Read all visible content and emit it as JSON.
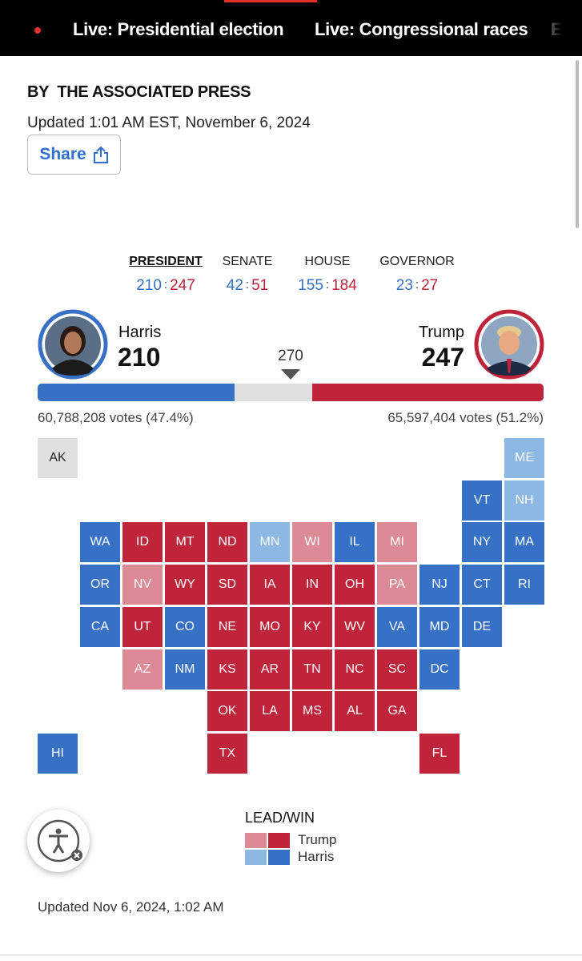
{
  "nav": {
    "items": [
      "Live: Presidential election",
      "Live: Congressional races",
      "El"
    ]
  },
  "header": {
    "byline": "BY  THE ASSOCIATED PRESS",
    "updated": "Updated 1:01 AM EST, November 6, 2024",
    "share": "Share"
  },
  "races": {
    "separator": ":",
    "tabs": [
      {
        "label": "PRESIDENT",
        "dem": 210,
        "rep": 247
      },
      {
        "label": "SENATE",
        "dem": 42,
        "rep": 51
      },
      {
        "label": "HOUSE",
        "dem": 155,
        "rep": 184
      },
      {
        "label": "GOVERNOR",
        "dem": 23,
        "rep": 27
      }
    ]
  },
  "president": {
    "threshold": 270,
    "harris": {
      "name": "Harris",
      "electoral_votes": 210,
      "votes": "60,788,208 votes (47.4%)",
      "color": "#3671c6"
    },
    "trump": {
      "name": "Trump",
      "electoral_votes": 247,
      "votes": "65,597,404 votes (51.2%)",
      "color": "#c0243a"
    }
  },
  "map": {
    "states": [
      {
        "label": "AK",
        "color": "#e0e0e0"
      },
      {
        "label": "ME",
        "color": "#8db8e3"
      },
      {
        "label": "VT",
        "color": "#3671c6"
      },
      {
        "label": "NH",
        "color": "#8db8e3"
      },
      {
        "label": "WA",
        "color": "#3671c6"
      },
      {
        "label": "ID",
        "color": "#c0243a"
      },
      {
        "label": "MT",
        "color": "#c0243a"
      },
      {
        "label": "ND",
        "color": "#c0243a"
      },
      {
        "label": "MN",
        "color": "#8db8e3"
      },
      {
        "label": "WI",
        "color": "#dd8a97"
      },
      {
        "label": "IL",
        "color": "#3671c6"
      },
      {
        "label": "MI",
        "color": "#dd8a97"
      },
      {
        "label": "NY",
        "color": "#3671c6"
      },
      {
        "label": "MA",
        "color": "#3671c6"
      },
      {
        "label": "OR",
        "color": "#3671c6"
      },
      {
        "label": "NV",
        "color": "#dd8a97"
      },
      {
        "label": "WY",
        "color": "#c0243a"
      },
      {
        "label": "SD",
        "color": "#c0243a"
      },
      {
        "label": "IA",
        "color": "#c0243a"
      },
      {
        "label": "IN",
        "color": "#c0243a"
      },
      {
        "label": "OH",
        "color": "#c0243a"
      },
      {
        "label": "PA",
        "color": "#dd8a97"
      },
      {
        "label": "NJ",
        "color": "#3671c6"
      },
      {
        "label": "CT",
        "color": "#3671c6"
      },
      {
        "label": "RI",
        "color": "#3671c6"
      },
      {
        "label": "CA",
        "color": "#3671c6"
      },
      {
        "label": "UT",
        "color": "#c0243a"
      },
      {
        "label": "CO",
        "color": "#3671c6"
      },
      {
        "label": "NE",
        "color": "#c0243a"
      },
      {
        "label": "MO",
        "color": "#c0243a"
      },
      {
        "label": "KY",
        "color": "#c0243a"
      },
      {
        "label": "WV",
        "color": "#c0243a"
      },
      {
        "label": "VA",
        "color": "#3671c6"
      },
      {
        "label": "MD",
        "color": "#3671c6"
      },
      {
        "label": "DE",
        "color": "#3671c6"
      },
      {
        "label": "AZ",
        "color": "#dd8a97"
      },
      {
        "label": "NM",
        "color": "#3671c6"
      },
      {
        "label": "KS",
        "color": "#c0243a"
      },
      {
        "label": "AR",
        "color": "#c0243a"
      },
      {
        "label": "TN",
        "color": "#c0243a"
      },
      {
        "label": "NC",
        "color": "#c0243a"
      },
      {
        "label": "SC",
        "color": "#c0243a"
      },
      {
        "label": "DC",
        "color": "#3671c6"
      },
      {
        "label": "OK",
        "color": "#c0243a"
      },
      {
        "label": "LA",
        "color": "#c0243a"
      },
      {
        "label": "MS",
        "color": "#c0243a"
      },
      {
        "label": "AL",
        "color": "#c0243a"
      },
      {
        "label": "GA",
        "color": "#c0243a"
      },
      {
        "label": "HI",
        "color": "#3671c6"
      },
      {
        "label": "TX",
        "color": "#c0243a"
      },
      {
        "label": "FL",
        "color": "#c0243a"
      }
    ]
  },
  "legend": {
    "title": "LEAD/WIN",
    "entries": [
      {
        "name": "Trump",
        "colors": [
          "#dd8a97",
          "#c0243a"
        ]
      },
      {
        "name": "Harris",
        "colors": [
          "#8db8e3",
          "#3671c6"
        ]
      }
    ]
  },
  "footer": {
    "updated": "Updated Nov 6, 2024, 1:02 AM"
  }
}
